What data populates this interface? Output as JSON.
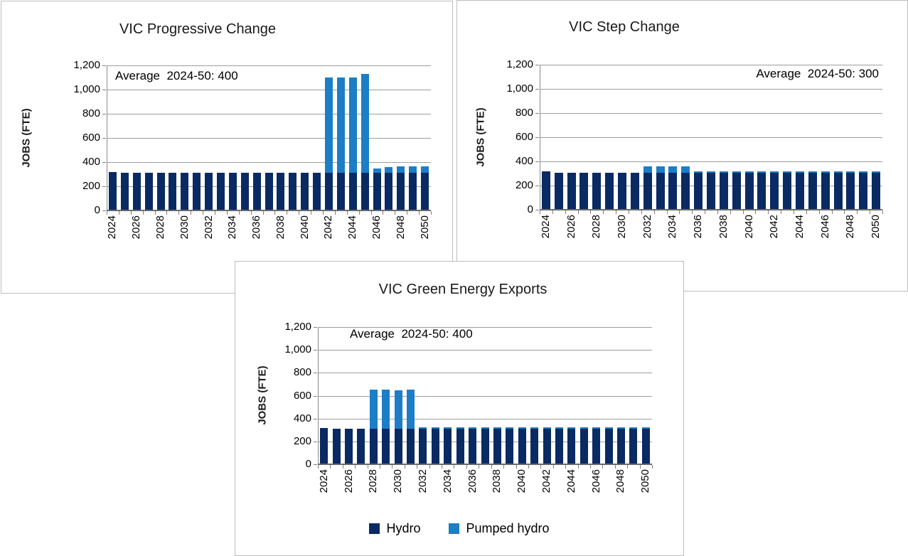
{
  "y_axis": {
    "title": "JOBS (FTE)",
    "tick_values": [
      0,
      200,
      400,
      600,
      800,
      1000,
      1200
    ],
    "tick_labels": [
      "0",
      "200",
      "400",
      "600",
      "800",
      "1,000",
      "1,200"
    ]
  },
  "legend": {
    "labels": [
      "Hydro",
      "Pumped hydro"
    ]
  },
  "colors": {
    "hydro": "#0A2A63",
    "pumped_hydro": "#1B7EC6",
    "gridline": "#9d9d9d",
    "axis": "#6b6b6b"
  },
  "chart_data": [
    {
      "type": "bar",
      "stacked": true,
      "title": "VIC Progressive Change",
      "annotation": "Average  2024-50: 400",
      "annotation_align": "left",
      "xlabel": "",
      "ylabel": "JOBS (FTE)",
      "ylim": [
        0,
        1200
      ],
      "ytick_step": 200,
      "grid": true,
      "xtick_label_interval": 2,
      "categories": [
        2024,
        2025,
        2026,
        2027,
        2028,
        2029,
        2030,
        2031,
        2032,
        2033,
        2034,
        2035,
        2036,
        2037,
        2038,
        2039,
        2040,
        2041,
        2042,
        2043,
        2044,
        2045,
        2046,
        2047,
        2048,
        2049,
        2050
      ],
      "series": [
        {
          "name": "Hydro",
          "color": "#0A2A63",
          "values": [
            320,
            310,
            310,
            310,
            310,
            310,
            310,
            310,
            310,
            310,
            310,
            310,
            310,
            310,
            310,
            310,
            310,
            310,
            310,
            310,
            310,
            310,
            310,
            310,
            310,
            310,
            310
          ]
        },
        {
          "name": "Pumped hydro",
          "color": "#1B7EC6",
          "values": [
            0,
            0,
            0,
            0,
            0,
            0,
            0,
            0,
            0,
            0,
            0,
            0,
            0,
            0,
            0,
            0,
            0,
            0,
            790,
            790,
            790,
            820,
            35,
            45,
            50,
            55,
            55
          ]
        }
      ]
    },
    {
      "type": "bar",
      "stacked": true,
      "title": "VIC Step Change",
      "annotation": "Average  2024-50: 300",
      "annotation_align": "right",
      "xlabel": "",
      "ylabel": "JOBS (FTE)",
      "ylim": [
        0,
        1200
      ],
      "ytick_step": 200,
      "grid": true,
      "xtick_label_interval": 2,
      "categories": [
        2024,
        2025,
        2026,
        2027,
        2028,
        2029,
        2030,
        2031,
        2032,
        2033,
        2034,
        2035,
        2036,
        2037,
        2038,
        2039,
        2040,
        2041,
        2042,
        2043,
        2044,
        2045,
        2046,
        2047,
        2048,
        2049,
        2050
      ],
      "series": [
        {
          "name": "Hydro",
          "color": "#0A2A63",
          "values": [
            315,
            305,
            305,
            305,
            305,
            305,
            305,
            305,
            305,
            305,
            305,
            305,
            305,
            305,
            305,
            305,
            305,
            305,
            305,
            305,
            305,
            305,
            305,
            305,
            305,
            305,
            305
          ]
        },
        {
          "name": "Pumped hydro",
          "color": "#1B7EC6",
          "values": [
            0,
            0,
            0,
            0,
            0,
            0,
            0,
            0,
            55,
            55,
            55,
            55,
            10,
            10,
            10,
            10,
            10,
            10,
            10,
            10,
            10,
            10,
            10,
            10,
            10,
            10,
            10
          ]
        }
      ]
    },
    {
      "type": "bar",
      "stacked": true,
      "title": "VIC Green Energy Exports",
      "annotation": "Average  2024-50: 400",
      "annotation_align": "left",
      "xlabel": "",
      "ylabel": "JOBS (FTE)",
      "ylim": [
        0,
        1200
      ],
      "ytick_step": 200,
      "grid": true,
      "xtick_label_interval": 2,
      "legend_position": "bottom",
      "categories": [
        2024,
        2025,
        2026,
        2027,
        2028,
        2029,
        2030,
        2031,
        2032,
        2033,
        2034,
        2035,
        2036,
        2037,
        2038,
        2039,
        2040,
        2041,
        2042,
        2043,
        2044,
        2045,
        2046,
        2047,
        2048,
        2049,
        2050
      ],
      "series": [
        {
          "name": "Hydro",
          "color": "#0A2A63",
          "values": [
            320,
            310,
            310,
            310,
            310,
            310,
            310,
            310,
            310,
            310,
            310,
            310,
            310,
            310,
            310,
            310,
            310,
            310,
            310,
            310,
            310,
            310,
            310,
            310,
            310,
            310,
            310
          ]
        },
        {
          "name": "Pumped hydro",
          "color": "#1B7EC6",
          "values": [
            0,
            0,
            0,
            0,
            345,
            340,
            335,
            340,
            10,
            10,
            10,
            10,
            10,
            10,
            10,
            10,
            10,
            10,
            10,
            10,
            10,
            10,
            10,
            10,
            10,
            10,
            10
          ]
        }
      ]
    }
  ]
}
